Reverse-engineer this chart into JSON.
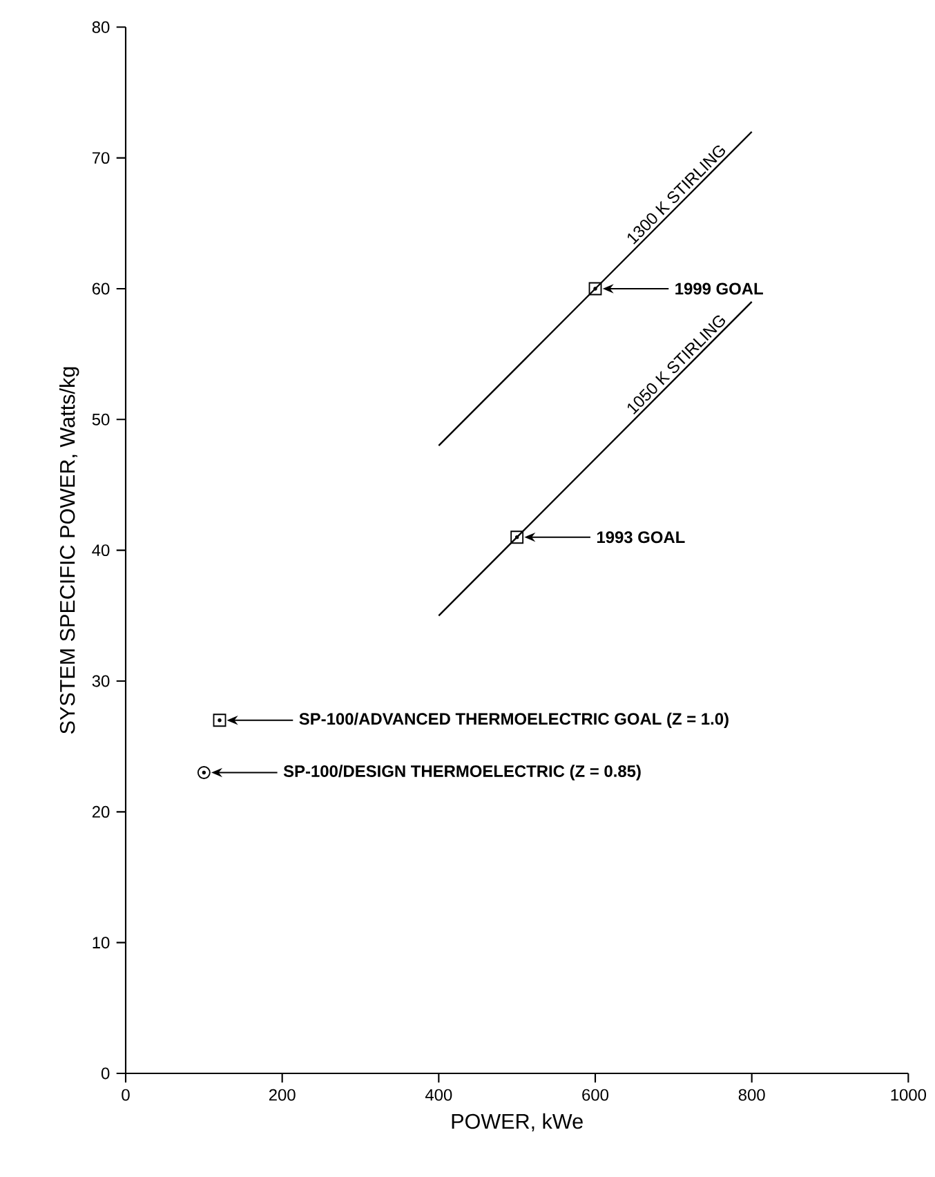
{
  "chart_data": {
    "type": "line",
    "xlabel": "POWER, kWe",
    "ylabel": "SYSTEM SPECIFIC POWER, Watts/kg",
    "xlim": [
      0,
      1000
    ],
    "xticks": [
      0,
      200,
      400,
      600,
      800,
      1000
    ],
    "ylim": [
      0,
      80
    ],
    "yticks": [
      0,
      10,
      20,
      30,
      40,
      50,
      60,
      70,
      80
    ],
    "grid": false,
    "series": [
      {
        "name": "1300 K STIRLING",
        "color": "#000000",
        "marker": "none",
        "x": [
          400,
          600,
          800
        ],
        "values": [
          48,
          60,
          72
        ]
      },
      {
        "name": "1050 K STIRLING",
        "color": "#000000",
        "marker": "none",
        "x": [
          400,
          500,
          800
        ],
        "values": [
          35,
          41,
          59
        ]
      },
      {
        "type": "scatter",
        "color": "#000000",
        "marker": "square",
        "x": [
          600,
          500,
          120
        ],
        "values": [
          60,
          41,
          27
        ]
      },
      {
        "type": "scatter",
        "color": "#000000",
        "marker": "circle",
        "x": [
          100
        ],
        "values": [
          23
        ]
      }
    ],
    "annotations": [
      "1999 GOAL",
      "1993 GOAL",
      "SP-100/ADVANCED THERMOELECTRIC GOAL (Z = 1.0)",
      "SP-100/DESIGN THERMOELECTRIC (Z = 0.85)"
    ]
  }
}
